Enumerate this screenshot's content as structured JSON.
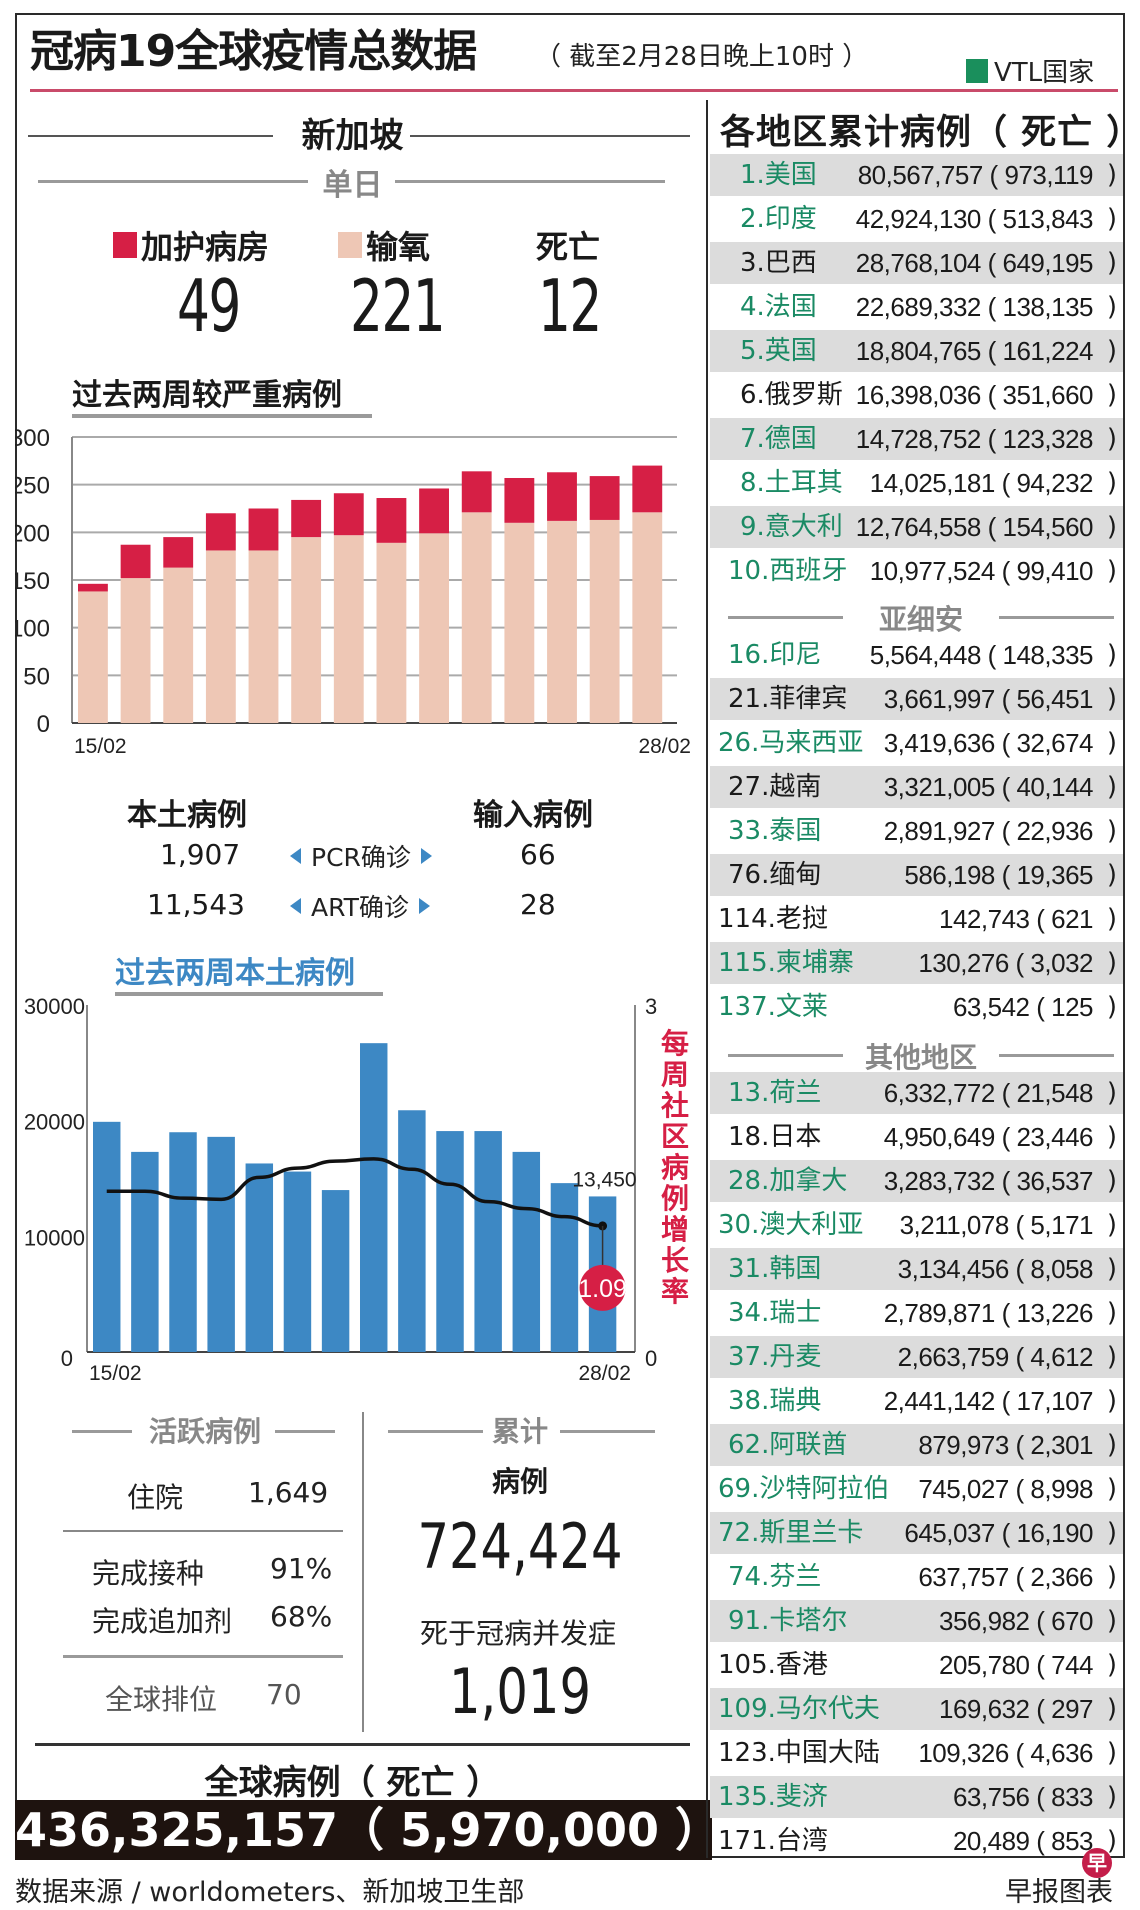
{
  "header": {
    "title": "冠病19全球疫情总数据",
    "subtitle": "（ 截至2月28日晚上10时 ）",
    "legend_vtl": "VTL国家",
    "colors": {
      "accent_line": "#c94b6a",
      "vtl_green": "#1a8f5c",
      "icu_red": "#d61f45",
      "oxygen_pink": "#eec7b5",
      "local_blue": "#3d88c4",
      "rate_red": "#d61f45"
    }
  },
  "singapore": {
    "heading": "新加坡",
    "daily": {
      "heading": "单日",
      "icu_label": "加护病房",
      "icu_value": "49",
      "oxygen_label": "输氧",
      "oxygen_value": "221",
      "deaths_label": "死亡",
      "deaths_value": "12"
    },
    "local_vs_imported": {
      "local_heading": "本土病例",
      "imported_heading": "输入病例",
      "rows": [
        {
          "local": "1,907",
          "method": "PCR确诊",
          "imported": "66"
        },
        {
          "local": "11,543",
          "method": "ART确诊",
          "imported": "28"
        }
      ]
    },
    "active": {
      "heading": "活跃病例",
      "hospitalised_label": "住院",
      "hospitalised_value": "1,649",
      "vaccinated_label": "完成接种",
      "vaccinated_value": "91%",
      "booster_label": "完成追加剂",
      "booster_value": "68%",
      "global_rank_label": "全球排位",
      "global_rank_value": "70"
    },
    "cumulative": {
      "heading": "累计",
      "cases_label": "病例",
      "cases_value": "724,424",
      "deaths_label": "死于冠病并发症",
      "deaths_value": "1,019"
    }
  },
  "global": {
    "heading": "全球病例（ 死亡 ）",
    "value": "436,325,157（ 5,970,000 ）"
  },
  "footer": {
    "source": "数据来源 / worldometers、新加坡卫生部",
    "credit": "早报图表",
    "logo_char": "早"
  },
  "chart_data": [
    {
      "type": "bar",
      "stacked": true,
      "title": "过去两周较严重病例",
      "categories": [
        "15/02",
        "16/02",
        "17/02",
        "18/02",
        "19/02",
        "20/02",
        "21/02",
        "22/02",
        "23/02",
        "24/02",
        "25/02",
        "26/02",
        "27/02",
        "28/02"
      ],
      "x_tick_labels": [
        "15/02",
        "28/02"
      ],
      "series": [
        {
          "name": "输氧",
          "color": "#eec7b5",
          "values": [
            138,
            152,
            163,
            181,
            181,
            195,
            197,
            189,
            199,
            221,
            210,
            212,
            213,
            221
          ]
        },
        {
          "name": "加护病房",
          "color": "#d61f45",
          "values": [
            8,
            35,
            32,
            39,
            44,
            39,
            44,
            47,
            47,
            43,
            47,
            51,
            46,
            49
          ]
        }
      ],
      "ylim": [
        0,
        300
      ],
      "yticks": [
        0,
        50,
        100,
        150,
        200,
        250,
        300
      ],
      "grid": true,
      "xlabel": "",
      "ylabel": ""
    },
    {
      "type": "bar+line",
      "title": "过去两周本土病例",
      "categories": [
        "15/02",
        "16/02",
        "17/02",
        "18/02",
        "19/02",
        "20/02",
        "21/02",
        "22/02",
        "23/02",
        "24/02",
        "25/02",
        "26/02",
        "27/02",
        "28/02"
      ],
      "x_tick_labels": [
        "15/02",
        "28/02"
      ],
      "series": [
        {
          "name": "本土病例",
          "axis": "left",
          "type": "bar",
          "color": "#3d88c4",
          "values": [
            19900,
            17300,
            19000,
            18600,
            16300,
            15600,
            14000,
            26700,
            20900,
            19100,
            19100,
            17300,
            14600,
            13450
          ]
        },
        {
          "name": "每周社区病例增长率",
          "axis": "right",
          "type": "line",
          "color": "#111111",
          "values": [
            1.39,
            1.39,
            1.33,
            1.32,
            1.51,
            1.59,
            1.65,
            1.67,
            1.58,
            1.45,
            1.3,
            1.24,
            1.17,
            1.09
          ]
        }
      ],
      "annotations": [
        {
          "text": "13,450",
          "target": "last bar"
        },
        {
          "text": "1.09",
          "target": "last line point"
        }
      ],
      "ylim": [
        0,
        30000
      ],
      "yticks": [
        0,
        10000,
        20000,
        30000
      ],
      "y2lim": [
        0,
        3
      ],
      "y2ticks": [
        0,
        3
      ],
      "y2label": "每周社区病例增长率",
      "grid": false
    }
  ],
  "regions_table": {
    "heading": "各地区累计病例（ 死亡 ）",
    "top10": [
      {
        "name": "1.美国",
        "cases": "80,567,757",
        "deaths": "973,119",
        "vtl": true
      },
      {
        "name": "2.印度",
        "cases": "42,924,130",
        "deaths": "513,843",
        "vtl": true
      },
      {
        "name": "3.巴西",
        "cases": "28,768,104",
        "deaths": "649,195",
        "vtl": false
      },
      {
        "name": "4.法国",
        "cases": "22,689,332",
        "deaths": "138,135",
        "vtl": true
      },
      {
        "name": "5.英国",
        "cases": "18,804,765",
        "deaths": "161,224",
        "vtl": true
      },
      {
        "name": "6.俄罗斯",
        "cases": "16,398,036",
        "deaths": "351,660",
        "vtl": false
      },
      {
        "name": "7.德国",
        "cases": "14,728,752",
        "deaths": "123,328",
        "vtl": true
      },
      {
        "name": "8.土耳其",
        "cases": "14,025,181",
        "deaths": "94,232",
        "vtl": true
      },
      {
        "name": "9.意大利",
        "cases": "12,764,558",
        "deaths": "154,560",
        "vtl": true
      },
      {
        "name": "10.西班牙",
        "cases": "10,977,524",
        "deaths": "99,410",
        "vtl": true
      }
    ],
    "asean_heading": "亚细安",
    "asean": [
      {
        "name": "16.印尼",
        "cases": "5,564,448",
        "deaths": "148,335",
        "vtl": true
      },
      {
        "name": "21.菲律宾",
        "cases": "3,661,997",
        "deaths": "56,451",
        "vtl": false
      },
      {
        "name": "26.马来西亚",
        "cases": "3,419,636",
        "deaths": "32,674",
        "vtl": true
      },
      {
        "name": "27.越南",
        "cases": "3,321,005",
        "deaths": "40,144",
        "vtl": false
      },
      {
        "name": "33.泰国",
        "cases": "2,891,927",
        "deaths": "22,936",
        "vtl": true
      },
      {
        "name": "76.缅甸",
        "cases": "586,198",
        "deaths": "19,365",
        "vtl": false
      },
      {
        "name": "114.老挝",
        "cases": "142,743",
        "deaths": "621",
        "vtl": false
      },
      {
        "name": "115.柬埔寨",
        "cases": "130,276",
        "deaths": "3,032",
        "vtl": true
      },
      {
        "name": "137.文莱",
        "cases": "63,542",
        "deaths": "125",
        "vtl": true
      }
    ],
    "others_heading": "其他地区",
    "others": [
      {
        "name": "13.荷兰",
        "cases": "6,332,772",
        "deaths": "21,548",
        "vtl": true
      },
      {
        "name": "18.日本",
        "cases": "4,950,649",
        "deaths": "23,446",
        "vtl": false
      },
      {
        "name": "28.加拿大",
        "cases": "3,283,732",
        "deaths": "36,537",
        "vtl": true
      },
      {
        "name": "30.澳大利亚",
        "cases": "3,211,078",
        "deaths": "5,171",
        "vtl": true
      },
      {
        "name": "31.韩国",
        "cases": "3,134,456",
        "deaths": "8,058",
        "vtl": true
      },
      {
        "name": "34.瑞士",
        "cases": "2,789,871",
        "deaths": "13,226",
        "vtl": true
      },
      {
        "name": "37.丹麦",
        "cases": "2,663,759",
        "deaths": "4,612",
        "vtl": true
      },
      {
        "name": "38.瑞典",
        "cases": "2,441,142",
        "deaths": "17,107",
        "vtl": true
      },
      {
        "name": "62.阿联酋",
        "cases": "879,973",
        "deaths": "2,301",
        "vtl": true
      },
      {
        "name": "69.沙特阿拉伯",
        "cases": "745,027",
        "deaths": "8,998",
        "vtl": true
      },
      {
        "name": "72.斯里兰卡",
        "cases": "645,037",
        "deaths": "16,190",
        "vtl": true
      },
      {
        "name": "74.芬兰",
        "cases": "637,757",
        "deaths": "2,366",
        "vtl": true
      },
      {
        "name": "91.卡塔尔",
        "cases": "356,982",
        "deaths": "670",
        "vtl": true
      },
      {
        "name": "105.香港",
        "cases": "205,780",
        "deaths": "744",
        "vtl": false
      },
      {
        "name": "109.马尔代夫",
        "cases": "169,632",
        "deaths": "297",
        "vtl": true
      },
      {
        "name": "123.中国大陆",
        "cases": "109,326",
        "deaths": "4,636",
        "vtl": false
      },
      {
        "name": "135.斐济",
        "cases": "63,756",
        "deaths": "833",
        "vtl": true
      },
      {
        "name": "171.台湾",
        "cases": "20,489",
        "deaths": "853",
        "vtl": false
      }
    ]
  }
}
